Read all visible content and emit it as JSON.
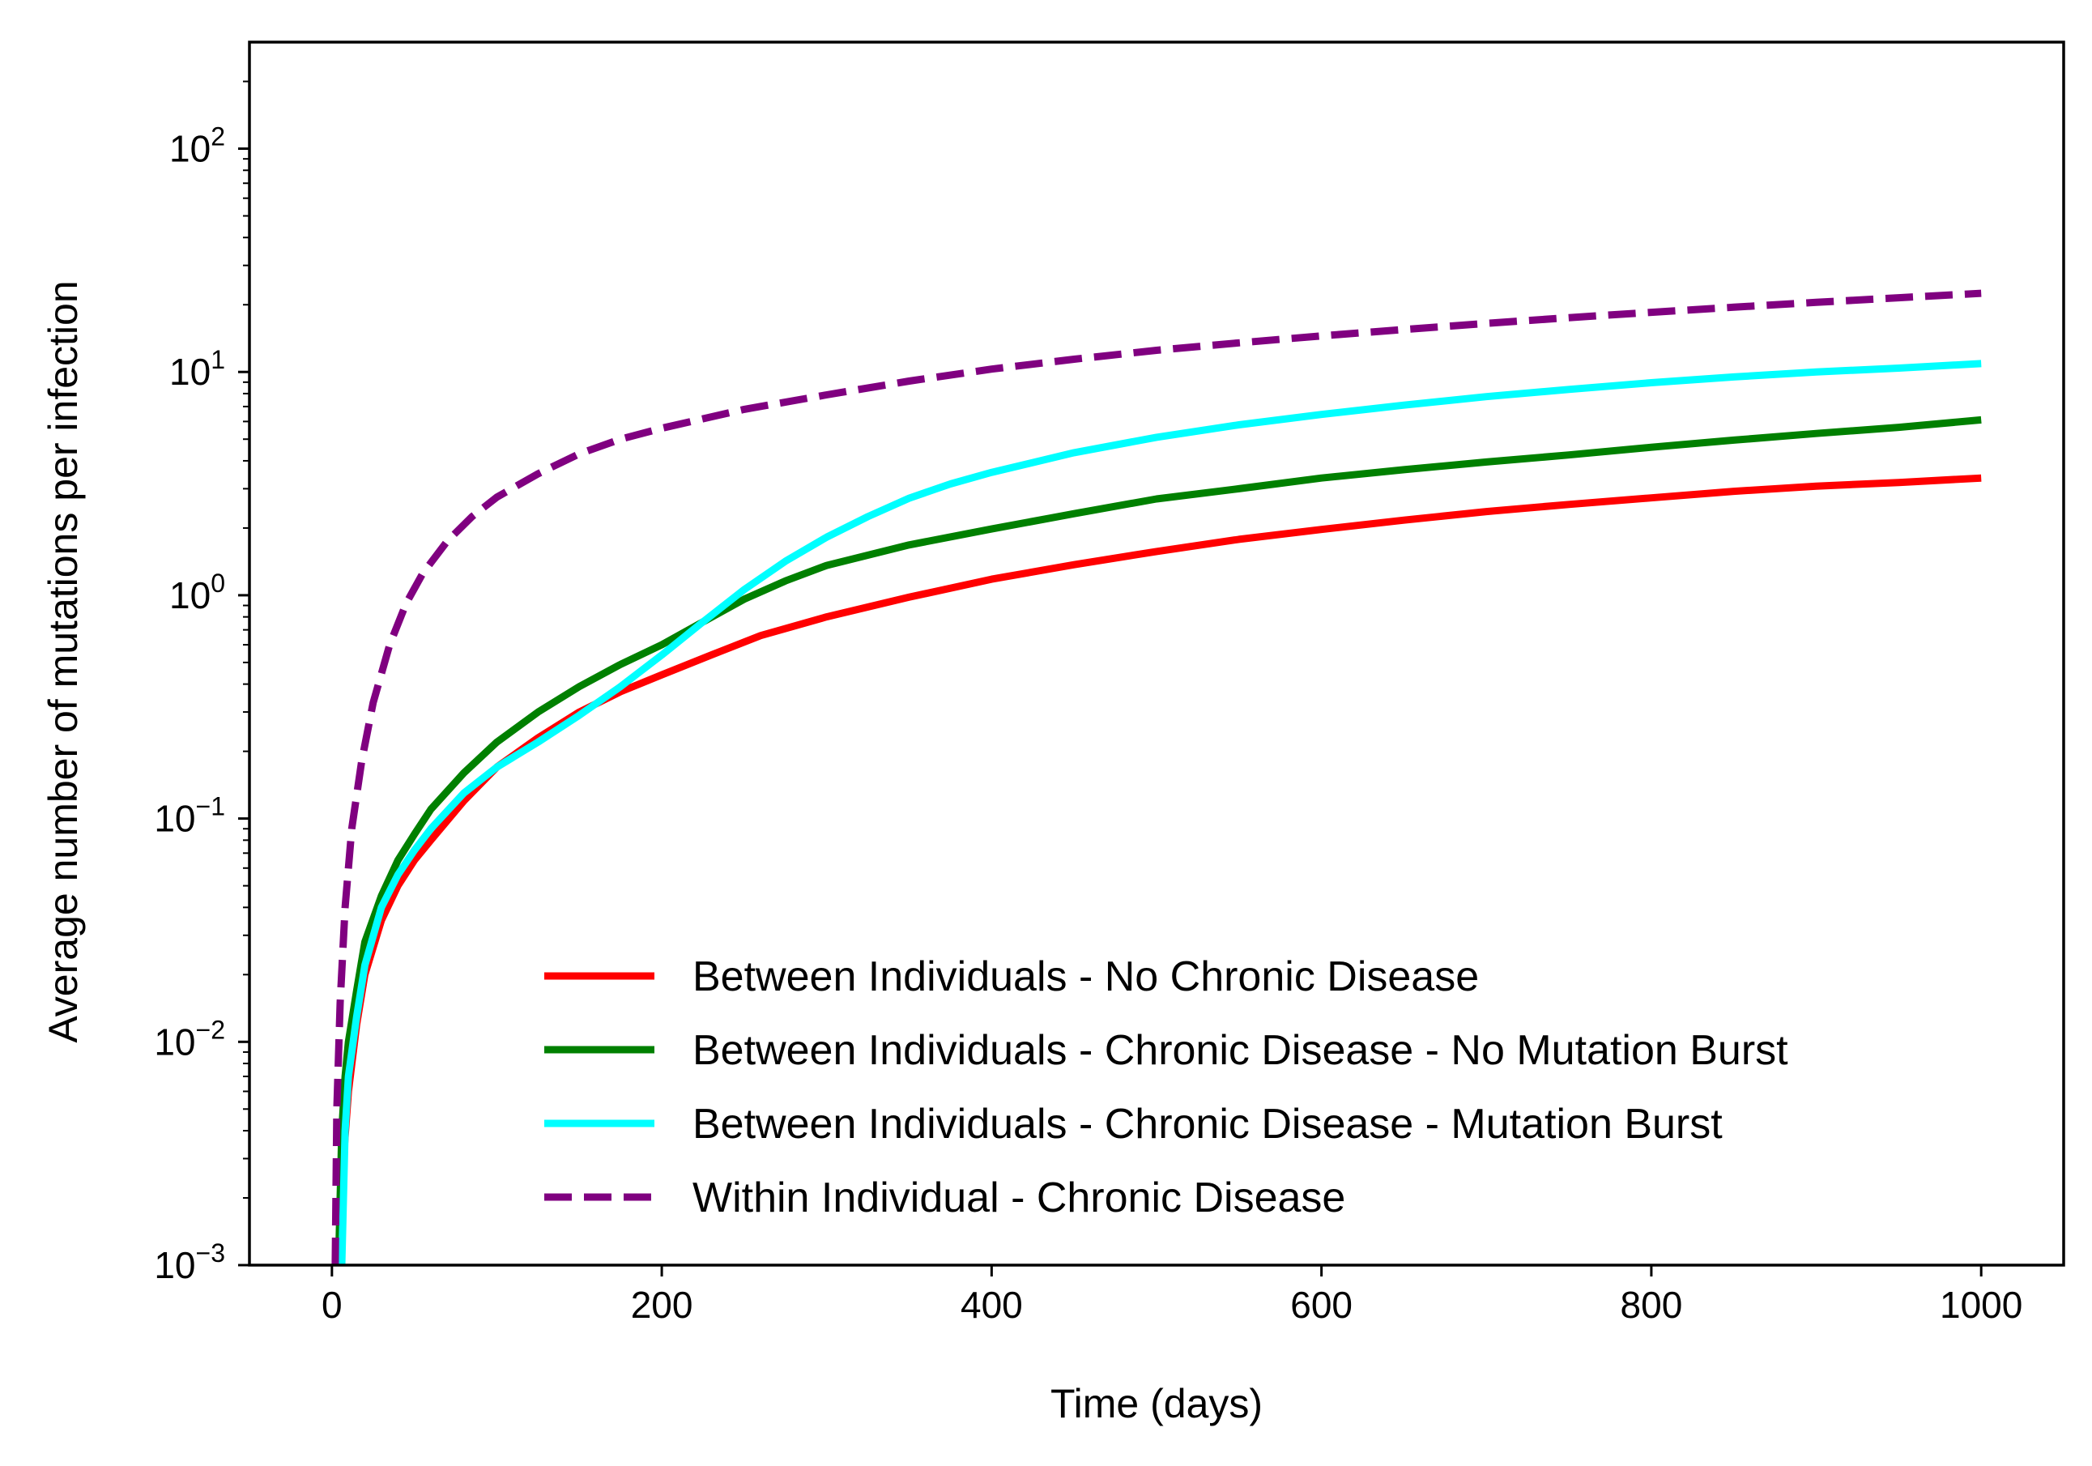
{
  "chart_data": {
    "type": "line",
    "title": "",
    "xlabel": "Time (days)",
    "ylabel": "Average number of mutations per infection",
    "xlim": [
      -50,
      1050
    ],
    "ylim": [
      0.001,
      300
    ],
    "yscale": "log",
    "grid": false,
    "legend_position": "lower-right",
    "x_ticks": [
      {
        "value": 0,
        "label": "0"
      },
      {
        "value": 200,
        "label": "200"
      },
      {
        "value": 400,
        "label": "400"
      },
      {
        "value": 600,
        "label": "600"
      },
      {
        "value": 800,
        "label": "800"
      },
      {
        "value": 1000,
        "label": "1000"
      }
    ],
    "y_ticks": [
      {
        "value": 0.001,
        "base": "10",
        "exp": "−3"
      },
      {
        "value": 0.01,
        "base": "10",
        "exp": "−2"
      },
      {
        "value": 0.1,
        "base": "10",
        "exp": "−1"
      },
      {
        "value": 1,
        "base": "10",
        "exp": "0"
      },
      {
        "value": 10,
        "base": "10",
        "exp": "1"
      },
      {
        "value": 100,
        "base": "10",
        "exp": "2"
      }
    ],
    "series": [
      {
        "name": "Between Individuals - No Chronic Disease",
        "color": "#ff0000",
        "dash": "solid",
        "x": [
          5,
          7,
          10,
          15,
          20,
          30,
          40,
          50,
          60,
          80,
          100,
          125,
          150,
          175,
          200,
          230,
          260,
          300,
          350,
          400,
          450,
          500,
          550,
          600,
          650,
          700,
          750,
          800,
          850,
          900,
          950,
          1000
        ],
        "y": [
          0.001,
          0.003,
          0.006,
          0.012,
          0.02,
          0.035,
          0.05,
          0.065,
          0.08,
          0.12,
          0.17,
          0.23,
          0.3,
          0.37,
          0.44,
          0.54,
          0.66,
          0.8,
          0.98,
          1.18,
          1.37,
          1.57,
          1.78,
          1.97,
          2.17,
          2.37,
          2.55,
          2.73,
          2.92,
          3.08,
          3.2,
          3.35
        ]
      },
      {
        "name": "Between Individuals - Chronic Disease - No Mutation Burst",
        "color": "#008000",
        "dash": "solid",
        "x": [
          4,
          6,
          8,
          10,
          15,
          20,
          30,
          40,
          50,
          60,
          80,
          100,
          125,
          150,
          175,
          200,
          225,
          250,
          275,
          300,
          350,
          400,
          450,
          500,
          550,
          600,
          650,
          700,
          750,
          800,
          850,
          900,
          950,
          1000
        ],
        "y": [
          0.001,
          0.004,
          0.007,
          0.01,
          0.017,
          0.028,
          0.045,
          0.065,
          0.085,
          0.11,
          0.16,
          0.22,
          0.3,
          0.39,
          0.49,
          0.6,
          0.76,
          0.96,
          1.16,
          1.36,
          1.68,
          1.98,
          2.32,
          2.7,
          3.0,
          3.35,
          3.65,
          3.95,
          4.25,
          4.6,
          4.95,
          5.3,
          5.65,
          6.1
        ]
      },
      {
        "name": "Between Individuals - Chronic Disease - Mutation Burst",
        "color": "#00ffff",
        "dash": "solid",
        "x": [
          6,
          8,
          10,
          15,
          20,
          30,
          40,
          50,
          60,
          80,
          100,
          125,
          150,
          175,
          200,
          225,
          250,
          275,
          300,
          325,
          350,
          375,
          400,
          450,
          500,
          550,
          600,
          650,
          700,
          750,
          800,
          850,
          900,
          950,
          1000
        ],
        "y": [
          0.001,
          0.004,
          0.007,
          0.013,
          0.022,
          0.04,
          0.056,
          0.072,
          0.09,
          0.13,
          0.17,
          0.22,
          0.29,
          0.39,
          0.54,
          0.76,
          1.06,
          1.42,
          1.82,
          2.25,
          2.72,
          3.15,
          3.55,
          4.35,
          5.1,
          5.8,
          6.45,
          7.1,
          7.75,
          8.35,
          8.95,
          9.5,
          10.0,
          10.4,
          10.9
        ]
      },
      {
        "name": "Within Individual - Chronic Disease",
        "color": "#800080",
        "dash": "dashed",
        "x": [
          2,
          3,
          5,
          8,
          12,
          18,
          25,
          35,
          45,
          55,
          70,
          85,
          100,
          125,
          150,
          175,
          200,
          250,
          300,
          350,
          400,
          450,
          500,
          550,
          600,
          650,
          700,
          750,
          800,
          850,
          900,
          950,
          1000
        ],
        "y": [
          0.001,
          0.005,
          0.015,
          0.04,
          0.09,
          0.18,
          0.33,
          0.6,
          0.92,
          1.25,
          1.75,
          2.25,
          2.75,
          3.5,
          4.3,
          5.0,
          5.6,
          6.8,
          7.9,
          9.1,
          10.3,
          11.4,
          12.5,
          13.5,
          14.5,
          15.5,
          16.5,
          17.5,
          18.5,
          19.5,
          20.5,
          21.5,
          22.5
        ]
      }
    ]
  }
}
